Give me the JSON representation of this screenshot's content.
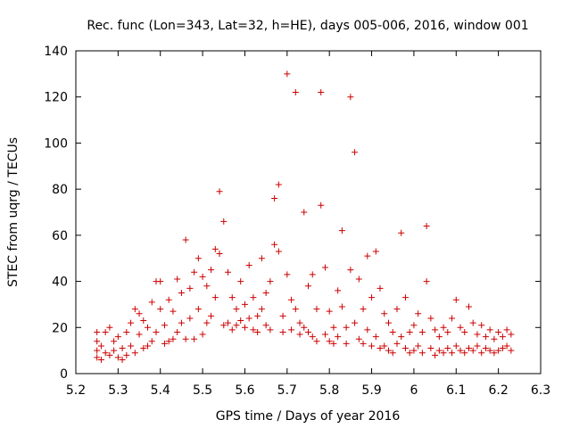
{
  "chart_data": {
    "type": "scatter",
    "title": "Rec. func (Lon=343, Lat=32, h=HE), days 005-006, 2016, window 001",
    "xlabel": "GPS time / Days of year 2016",
    "ylabel": "STEC from uqrg / TECUs",
    "xlim": [
      5.2,
      6.3
    ],
    "ylim": [
      0,
      140
    ],
    "xticks": [
      5.2,
      5.3,
      5.4,
      5.5,
      5.6,
      5.7,
      5.8,
      5.9,
      6.0,
      6.1,
      6.2,
      6.3
    ],
    "xtick_labels": [
      "5.2",
      "5.3",
      "5.4",
      "5.5",
      "5.6",
      "5.7",
      "5.8",
      "5.9",
      "6",
      "6.1",
      "6.2",
      "6.3"
    ],
    "yticks": [
      0,
      20,
      40,
      60,
      80,
      100,
      120,
      140
    ],
    "ytick_labels": [
      "0",
      "20",
      "40",
      "60",
      "80",
      "100",
      "120",
      "140"
    ],
    "grid": false,
    "legend": "none",
    "marker": "plus",
    "color": "#cc0000",
    "points": [
      [
        5.25,
        18
      ],
      [
        5.25,
        14
      ],
      [
        5.25,
        10
      ],
      [
        5.25,
        7
      ],
      [
        5.26,
        12
      ],
      [
        5.26,
        6
      ],
      [
        5.27,
        18
      ],
      [
        5.27,
        9
      ],
      [
        5.28,
        20
      ],
      [
        5.28,
        8
      ],
      [
        5.29,
        14
      ],
      [
        5.29,
        10
      ],
      [
        5.3,
        16
      ],
      [
        5.3,
        7
      ],
      [
        5.31,
        11
      ],
      [
        5.31,
        6
      ],
      [
        5.32,
        18
      ],
      [
        5.32,
        8
      ],
      [
        5.33,
        22
      ],
      [
        5.33,
        12
      ],
      [
        5.34,
        28
      ],
      [
        5.34,
        9
      ],
      [
        5.35,
        26
      ],
      [
        5.35,
        17
      ],
      [
        5.36,
        23
      ],
      [
        5.36,
        11
      ],
      [
        5.37,
        20
      ],
      [
        5.37,
        12
      ],
      [
        5.38,
        31
      ],
      [
        5.38,
        14
      ],
      [
        5.39,
        40
      ],
      [
        5.39,
        18
      ],
      [
        5.4,
        40
      ],
      [
        5.4,
        28
      ],
      [
        5.41,
        21
      ],
      [
        5.41,
        13
      ],
      [
        5.42,
        32
      ],
      [
        5.42,
        14
      ],
      [
        5.43,
        27
      ],
      [
        5.43,
        15
      ],
      [
        5.44,
        41
      ],
      [
        5.44,
        18
      ],
      [
        5.45,
        35
      ],
      [
        5.45,
        22
      ],
      [
        5.46,
        58
      ],
      [
        5.46,
        15
      ],
      [
        5.47,
        37
      ],
      [
        5.47,
        24
      ],
      [
        5.48,
        44
      ],
      [
        5.48,
        15
      ],
      [
        5.49,
        50
      ],
      [
        5.49,
        28
      ],
      [
        5.5,
        42
      ],
      [
        5.5,
        17
      ],
      [
        5.51,
        38
      ],
      [
        5.51,
        22
      ],
      [
        5.52,
        45
      ],
      [
        5.52,
        25
      ],
      [
        5.53,
        54
      ],
      [
        5.53,
        33
      ],
      [
        5.54,
        79
      ],
      [
        5.54,
        52
      ],
      [
        5.55,
        66
      ],
      [
        5.55,
        21
      ],
      [
        5.56,
        44
      ],
      [
        5.56,
        22
      ],
      [
        5.57,
        33
      ],
      [
        5.57,
        19
      ],
      [
        5.58,
        28
      ],
      [
        5.58,
        21
      ],
      [
        5.59,
        40
      ],
      [
        5.59,
        23
      ],
      [
        5.6,
        30
      ],
      [
        5.6,
        20
      ],
      [
        5.61,
        47
      ],
      [
        5.61,
        24
      ],
      [
        5.62,
        33
      ],
      [
        5.62,
        19
      ],
      [
        5.63,
        25
      ],
      [
        5.63,
        18
      ],
      [
        5.64,
        50
      ],
      [
        5.64,
        28
      ],
      [
        5.65,
        35
      ],
      [
        5.65,
        21
      ],
      [
        5.66,
        40
      ],
      [
        5.66,
        19
      ],
      [
        5.67,
        76
      ],
      [
        5.67,
        56
      ],
      [
        5.68,
        82
      ],
      [
        5.68,
        53
      ],
      [
        5.69,
        25
      ],
      [
        5.69,
        18
      ],
      [
        5.7,
        130
      ],
      [
        5.7,
        43
      ],
      [
        5.71,
        32
      ],
      [
        5.71,
        19
      ],
      [
        5.72,
        122
      ],
      [
        5.72,
        28
      ],
      [
        5.73,
        22
      ],
      [
        5.73,
        17
      ],
      [
        5.74,
        70
      ],
      [
        5.74,
        20
      ],
      [
        5.75,
        38
      ],
      [
        5.75,
        18
      ],
      [
        5.76,
        43
      ],
      [
        5.76,
        16
      ],
      [
        5.77,
        28
      ],
      [
        5.77,
        14
      ],
      [
        5.78,
        122
      ],
      [
        5.78,
        73
      ],
      [
        5.79,
        46
      ],
      [
        5.79,
        17
      ],
      [
        5.8,
        27
      ],
      [
        5.8,
        14
      ],
      [
        5.81,
        20
      ],
      [
        5.81,
        13
      ],
      [
        5.82,
        36
      ],
      [
        5.82,
        16
      ],
      [
        5.83,
        62
      ],
      [
        5.83,
        29
      ],
      [
        5.84,
        20
      ],
      [
        5.84,
        13
      ],
      [
        5.85,
        120
      ],
      [
        5.85,
        45
      ],
      [
        5.86,
        96
      ],
      [
        5.86,
        22
      ],
      [
        5.87,
        41
      ],
      [
        5.87,
        15
      ],
      [
        5.88,
        28
      ],
      [
        5.88,
        13
      ],
      [
        5.89,
        51
      ],
      [
        5.89,
        19
      ],
      [
        5.9,
        33
      ],
      [
        5.9,
        12
      ],
      [
        5.91,
        53
      ],
      [
        5.91,
        16
      ],
      [
        5.92,
        37
      ],
      [
        5.92,
        11
      ],
      [
        5.93,
        26
      ],
      [
        5.93,
        12
      ],
      [
        5.94,
        22
      ],
      [
        5.94,
        10
      ],
      [
        5.95,
        18
      ],
      [
        5.95,
        9
      ],
      [
        5.96,
        28
      ],
      [
        5.96,
        13
      ],
      [
        5.97,
        61
      ],
      [
        5.97,
        16
      ],
      [
        5.98,
        33
      ],
      [
        5.98,
        11
      ],
      [
        5.99,
        18
      ],
      [
        5.99,
        9
      ],
      [
        6.0,
        21
      ],
      [
        6.0,
        10
      ],
      [
        6.01,
        26
      ],
      [
        6.01,
        12
      ],
      [
        6.02,
        18
      ],
      [
        6.02,
        9
      ],
      [
        6.03,
        64
      ],
      [
        6.03,
        40
      ],
      [
        6.04,
        24
      ],
      [
        6.04,
        11
      ],
      [
        6.05,
        19
      ],
      [
        6.05,
        8
      ],
      [
        6.06,
        16
      ],
      [
        6.06,
        10
      ],
      [
        6.07,
        20
      ],
      [
        6.07,
        9
      ],
      [
        6.08,
        18
      ],
      [
        6.08,
        11
      ],
      [
        6.09,
        24
      ],
      [
        6.09,
        9
      ],
      [
        6.1,
        32
      ],
      [
        6.1,
        12
      ],
      [
        6.11,
        20
      ],
      [
        6.11,
        10
      ],
      [
        6.12,
        18
      ],
      [
        6.12,
        9
      ],
      [
        6.13,
        29
      ],
      [
        6.13,
        11
      ],
      [
        6.14,
        22
      ],
      [
        6.14,
        10
      ],
      [
        6.15,
        17
      ],
      [
        6.15,
        12
      ],
      [
        6.16,
        21
      ],
      [
        6.16,
        9
      ],
      [
        6.17,
        16
      ],
      [
        6.17,
        11
      ],
      [
        6.18,
        19
      ],
      [
        6.18,
        10
      ],
      [
        6.19,
        15
      ],
      [
        6.19,
        9
      ],
      [
        6.2,
        18
      ],
      [
        6.2,
        10
      ],
      [
        6.21,
        16
      ],
      [
        6.21,
        11
      ],
      [
        6.22,
        19
      ],
      [
        6.22,
        12
      ],
      [
        6.23,
        17
      ],
      [
        6.23,
        10
      ]
    ]
  }
}
